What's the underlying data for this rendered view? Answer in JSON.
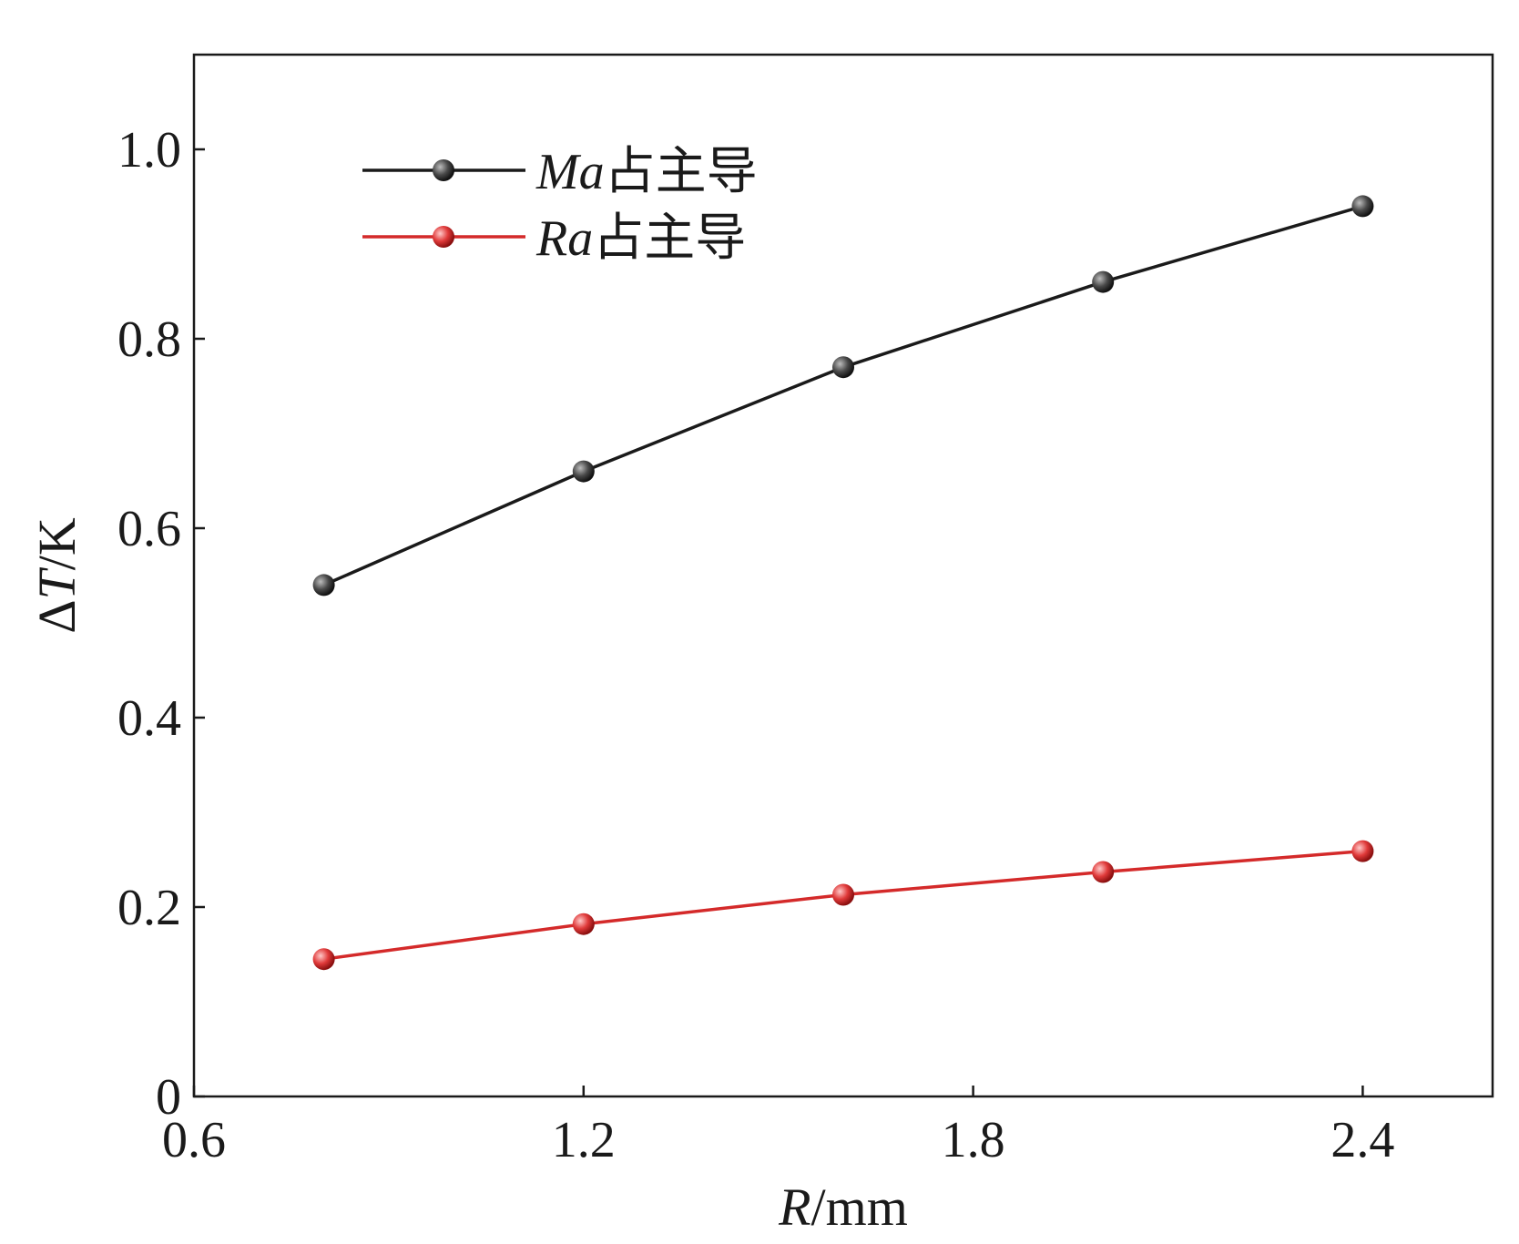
{
  "chart_data": {
    "type": "line",
    "xlabel": {
      "symbol": "R",
      "unit": "/mm"
    },
    "ylabel": {
      "symbol": "T",
      "prefix": "Δ",
      "unit": "/K"
    },
    "xlim": [
      0.6,
      2.6
    ],
    "ylim": [
      0,
      1.1
    ],
    "x_ticks": [
      0.6,
      1.2,
      1.8,
      2.4
    ],
    "x_tick_labels": [
      "0.6",
      "1.2",
      "1.8",
      "2.4"
    ],
    "y_ticks": [
      0,
      0.2,
      0.4,
      0.6,
      0.8,
      1.0
    ],
    "y_tick_labels": [
      "0",
      "0.2",
      "0.4",
      "0.6",
      "0.8",
      "1.0"
    ],
    "grid": false,
    "legend_position": "top-left",
    "x": [
      0.8,
      1.2,
      1.6,
      2.0,
      2.4
    ],
    "series": [
      {
        "name": "Ma占主导",
        "name_italic": "Ma",
        "name_rest": "占主导",
        "color": "#1a1a1a",
        "marker_color": "#3a3a3a",
        "values": [
          0.54,
          0.66,
          0.77,
          0.86,
          0.94
        ]
      },
      {
        "name": "Ra占主导",
        "name_italic": "Ra",
        "name_rest": "占主导",
        "color": "#d42a2a",
        "marker_color": "#e03a3a",
        "values": [
          0.145,
          0.182,
          0.213,
          0.237,
          0.259
        ]
      }
    ]
  }
}
